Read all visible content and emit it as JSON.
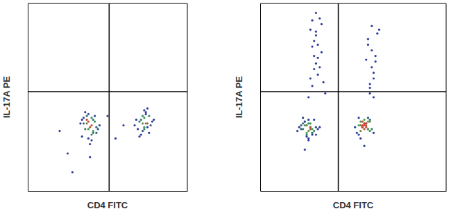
{
  "chart_data": [
    {
      "type": "scatter",
      "x_label": "CD4 FITC",
      "y_label": "IL-17A PE",
      "xlim": [
        0,
        100
      ],
      "ylim": [
        0,
        100
      ],
      "tick_labels": false,
      "color": "#2b3a9a",
      "quadrant_x": 51,
      "quadrant_y": 53,
      "x": [
        35,
        38,
        41,
        43,
        37,
        40,
        34,
        42,
        39,
        36,
        44,
        38,
        33,
        40,
        41,
        37,
        39,
        45,
        36,
        42,
        38,
        40,
        35,
        43,
        39,
        37,
        41,
        34,
        40,
        38,
        70,
        73,
        76,
        72,
        68,
        75,
        74,
        71,
        77,
        73,
        69,
        74,
        72,
        78,
        70,
        75,
        73,
        71,
        76,
        74,
        72,
        67,
        79,
        73,
        75,
        20,
        25,
        55,
        60,
        50,
        28
      ],
      "values": [
        36,
        33,
        38,
        31,
        40,
        35,
        29,
        37,
        34,
        42,
        33,
        28,
        36,
        39,
        31,
        38,
        25,
        35,
        33,
        40,
        37,
        30,
        39,
        34,
        18,
        36,
        32,
        38,
        27,
        41,
        37,
        34,
        40,
        32,
        38,
        36,
        42,
        30,
        35,
        39,
        33,
        41,
        36,
        37,
        29,
        34,
        43,
        38,
        31,
        36,
        40,
        35,
        38,
        33,
        44,
        32,
        20,
        28,
        35,
        40,
        10
      ]
    },
    {
      "type": "scatter",
      "x_label": "CD4 FITC",
      "y_label": "IL-17A PE",
      "xlim": [
        0,
        100
      ],
      "ylim": [
        0,
        100
      ],
      "tick_labels": false,
      "color": "#2b3a9a",
      "quadrant_x": 42,
      "quadrant_y": 53,
      "x": [
        22,
        25,
        28,
        24,
        27,
        30,
        23,
        26,
        29,
        21,
        25,
        27,
        24,
        28,
        26,
        31,
        23,
        25,
        27,
        29,
        24,
        26,
        22,
        28,
        25,
        27,
        30,
        24,
        26,
        23,
        28,
        25,
        20,
        32,
        26,
        53,
        56,
        58,
        55,
        57,
        54,
        59,
        56,
        52,
        57,
        55,
        58,
        60,
        54,
        56,
        53,
        57,
        55,
        59,
        56,
        54,
        58,
        55,
        57,
        56,
        61,
        53,
        55,
        58,
        56,
        54,
        57,
        51,
        59,
        56,
        28,
        31,
        30,
        33,
        29,
        27,
        32,
        30,
        34,
        29,
        31,
        28,
        30,
        33,
        27,
        32,
        29,
        31,
        30,
        28,
        35,
        26,
        59,
        61,
        60,
        62,
        58,
        63,
        60,
        59,
        61,
        62,
        60,
        58,
        64,
        61,
        59,
        57
      ],
      "values": [
        33,
        35,
        31,
        37,
        34,
        30,
        36,
        32,
        38,
        34,
        29,
        33,
        35,
        31,
        36,
        33,
        39,
        30,
        34,
        32,
        37,
        28,
        35,
        33,
        31,
        36,
        34,
        22,
        38,
        33,
        30,
        35,
        32,
        34,
        27,
        35,
        33,
        37,
        34,
        36,
        32,
        38,
        35,
        31,
        36,
        34,
        39,
        33,
        37,
        35,
        30,
        36,
        34,
        32,
        38,
        35,
        33,
        37,
        34,
        36,
        31,
        39,
        35,
        33,
        36,
        28,
        35,
        34,
        37,
        24,
        56,
        62,
        68,
        74,
        80,
        86,
        92,
        95,
        58,
        65,
        71,
        77,
        83,
        89,
        60,
        66,
        72,
        78,
        85,
        91,
        52,
        50,
        55,
        60,
        66,
        72,
        78,
        84,
        88,
        57,
        63,
        69,
        75,
        81,
        86,
        50,
        52,
        70
      ]
    }
  ]
}
